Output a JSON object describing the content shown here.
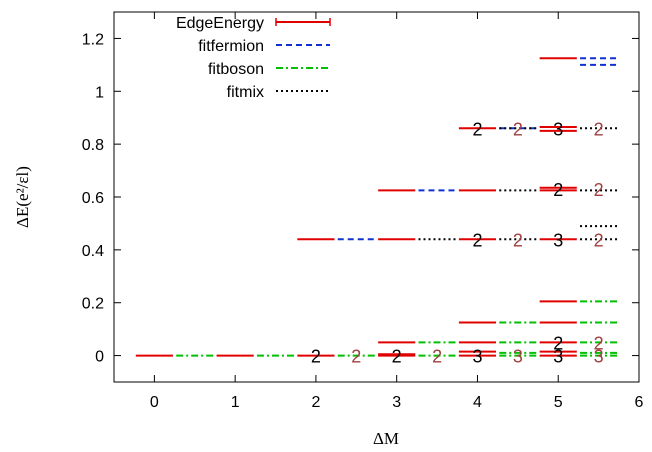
{
  "chart_data": {
    "type": "line",
    "title": "",
    "xlabel": "ΔM",
    "ylabel": "ΔE(e²/εl)",
    "xlim": [
      -0.5,
      6
    ],
    "ylim": [
      -0.1,
      1.3
    ],
    "xticks": [
      "0",
      "1",
      "2",
      "3",
      "4",
      "5",
      "6"
    ],
    "yticks": [
      "0",
      "0.2",
      "0.4",
      "0.6",
      "0.8",
      "1",
      "1.2"
    ],
    "grid": false,
    "legend_position": "top-left",
    "legend": [
      {
        "label": "EdgeEnergy",
        "color": "#e00000",
        "style": "solid-errorbar"
      },
      {
        "label": "fitfermion",
        "color": "#1030d0",
        "style": "dashed"
      },
      {
        "label": "fitboson",
        "color": "#00c000",
        "style": "dash-dot"
      },
      {
        "label": "fitmix",
        "color": "#000000",
        "style": "dotted"
      }
    ],
    "series": [
      {
        "name": "EdgeEnergy",
        "levels": [
          {
            "x": 0,
            "y": 0.0
          },
          {
            "x": 1,
            "y": 0.0
          },
          {
            "x": 2,
            "y": 0.0
          },
          {
            "x": 2,
            "y": 0.44
          },
          {
            "x": 3,
            "y": 0.0
          },
          {
            "x": 3,
            "y": 0.005
          },
          {
            "x": 3,
            "y": 0.05
          },
          {
            "x": 3,
            "y": 0.44
          },
          {
            "x": 3,
            "y": 0.625
          },
          {
            "x": 4,
            "y": 0.0
          },
          {
            "x": 4,
            "y": 0.015
          },
          {
            "x": 4,
            "y": 0.05
          },
          {
            "x": 4,
            "y": 0.125
          },
          {
            "x": 4,
            "y": 0.44
          },
          {
            "x": 4,
            "y": 0.625
          },
          {
            "x": 4,
            "y": 0.86
          },
          {
            "x": 5,
            "y": 0.0
          },
          {
            "x": 5,
            "y": 0.015
          },
          {
            "x": 5,
            "y": 0.05
          },
          {
            "x": 5,
            "y": 0.125
          },
          {
            "x": 5,
            "y": 0.205
          },
          {
            "x": 5,
            "y": 0.44
          },
          {
            "x": 5,
            "y": 0.625
          },
          {
            "x": 5,
            "y": 0.635
          },
          {
            "x": 5,
            "y": 0.85
          },
          {
            "x": 5,
            "y": 0.865
          },
          {
            "x": 5,
            "y": 1.125
          }
        ]
      },
      {
        "name": "fitfermion",
        "levels": [
          {
            "x": 2.5,
            "y": 0.44
          },
          {
            "x": 3.5,
            "y": 0.625
          },
          {
            "x": 4.5,
            "y": 0.86
          },
          {
            "x": 5.5,
            "y": 1.1
          },
          {
            "x": 5.5,
            "y": 1.125
          }
        ]
      },
      {
        "name": "fitboson",
        "levels": [
          {
            "x": 0.5,
            "y": 0.0
          },
          {
            "x": 1.5,
            "y": 0.0
          },
          {
            "x": 2.5,
            "y": 0.0
          },
          {
            "x": 3.5,
            "y": 0.0
          },
          {
            "x": 3.5,
            "y": 0.05
          },
          {
            "x": 4.5,
            "y": 0.0
          },
          {
            "x": 4.5,
            "y": 0.01
          },
          {
            "x": 4.5,
            "y": 0.05
          },
          {
            "x": 4.5,
            "y": 0.125
          },
          {
            "x": 5.5,
            "y": 0.0
          },
          {
            "x": 5.5,
            "y": 0.01
          },
          {
            "x": 5.5,
            "y": 0.05
          },
          {
            "x": 5.5,
            "y": 0.125
          },
          {
            "x": 5.5,
            "y": 0.205
          }
        ]
      },
      {
        "name": "fitmix",
        "levels": [
          {
            "x": 3.5,
            "y": 0.44
          },
          {
            "x": 4.5,
            "y": 0.44
          },
          {
            "x": 4.5,
            "y": 0.625
          },
          {
            "x": 4.5,
            "y": 0.86
          },
          {
            "x": 5.5,
            "y": 0.44
          },
          {
            "x": 5.5,
            "y": 0.49
          },
          {
            "x": 5.5,
            "y": 0.625
          },
          {
            "x": 5.5,
            "y": 0.86
          }
        ]
      }
    ],
    "degeneracy_labels": [
      {
        "x": 2.0,
        "y": 0.0,
        "text": "2",
        "color": "#000000"
      },
      {
        "x": 2.5,
        "y": 0.0,
        "text": "2",
        "color": "#a04040"
      },
      {
        "x": 3.0,
        "y": 0.0,
        "text": "2",
        "color": "#000000"
      },
      {
        "x": 3.5,
        "y": 0.0,
        "text": "2",
        "color": "#a04040"
      },
      {
        "x": 4.0,
        "y": 0.0,
        "text": "3",
        "color": "#000000"
      },
      {
        "x": 4.5,
        "y": 0.0,
        "text": "3",
        "color": "#a04040"
      },
      {
        "x": 5.0,
        "y": 0.0,
        "text": "3",
        "color": "#000000"
      },
      {
        "x": 5.0,
        "y": 0.05,
        "text": "2",
        "color": "#000000"
      },
      {
        "x": 5.5,
        "y": 0.0,
        "text": "3",
        "color": "#a04040"
      },
      {
        "x": 5.5,
        "y": 0.05,
        "text": "2",
        "color": "#a04040"
      },
      {
        "x": 4.0,
        "y": 0.44,
        "text": "2",
        "color": "#000000"
      },
      {
        "x": 4.5,
        "y": 0.44,
        "text": "2",
        "color": "#a04040"
      },
      {
        "x": 5.0,
        "y": 0.44,
        "text": "3",
        "color": "#000000"
      },
      {
        "x": 5.5,
        "y": 0.44,
        "text": "2",
        "color": "#a04040"
      },
      {
        "x": 5.0,
        "y": 0.63,
        "text": "2",
        "color": "#000000"
      },
      {
        "x": 5.5,
        "y": 0.63,
        "text": "2",
        "color": "#a04040"
      },
      {
        "x": 4.0,
        "y": 0.86,
        "text": "2",
        "color": "#000000"
      },
      {
        "x": 4.5,
        "y": 0.86,
        "text": "2",
        "color": "#a04040"
      },
      {
        "x": 5.0,
        "y": 0.86,
        "text": "3",
        "color": "#000000"
      },
      {
        "x": 5.5,
        "y": 0.86,
        "text": "2",
        "color": "#a04040"
      }
    ]
  }
}
